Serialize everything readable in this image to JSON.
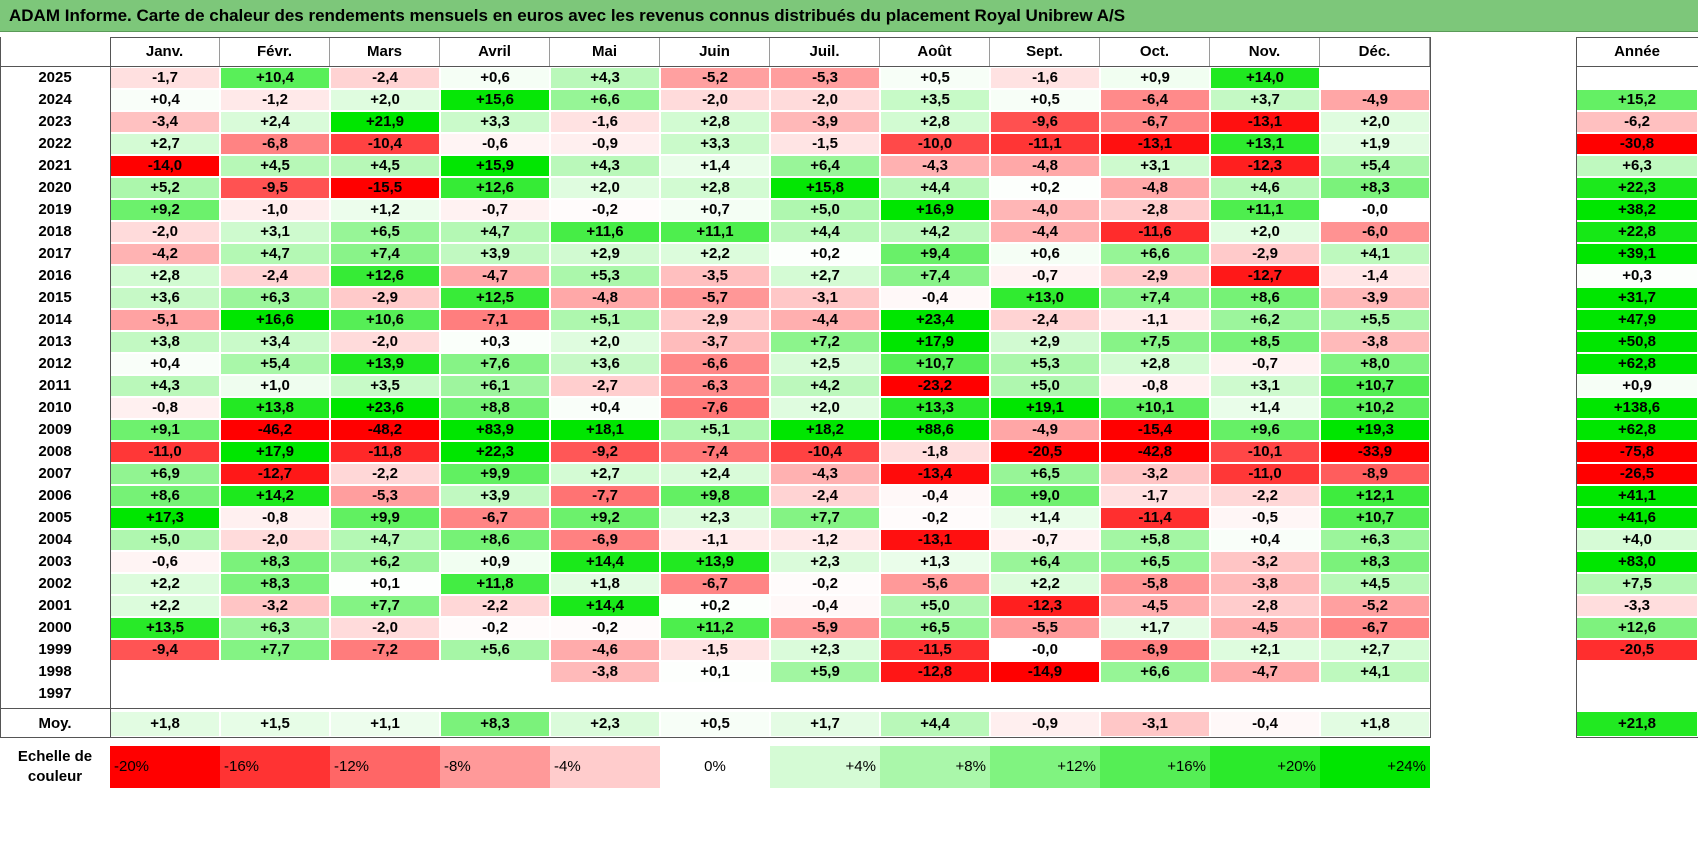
{
  "title": "ADAM Informe. Carte de chaleur des rendements mensuels en euros avec les revenus connus distribués du placement Royal Unibrew A/S",
  "chart_data": {
    "type": "heatmap",
    "title": "ADAM Informe. Carte de chaleur des rendements mensuels en euros avec les revenus connus distribués du placement Royal Unibrew A/S",
    "columns": [
      "Janv.",
      "Févr.",
      "Mars",
      "Avril",
      "Mai",
      "Juin",
      "Juil.",
      "Août",
      "Sept.",
      "Oct.",
      "Nov.",
      "Déc."
    ],
    "year_header": "Année",
    "rows": [
      {
        "year": "2025",
        "months": [
          "-1,7",
          "+10,4",
          "-2,4",
          "+0,6",
          "+4,3",
          "-5,2",
          "-5,3",
          "+0,5",
          "-1,6",
          "+0,9",
          "+14,0",
          ""
        ],
        "annual": ""
      },
      {
        "year": "2024",
        "months": [
          "+0,4",
          "-1,2",
          "+2,0",
          "+15,6",
          "+6,6",
          "-2,0",
          "-2,0",
          "+3,5",
          "+0,5",
          "-6,4",
          "+3,7",
          "-4,9"
        ],
        "annual": "+15,2"
      },
      {
        "year": "2023",
        "months": [
          "-3,4",
          "+2,4",
          "+21,9",
          "+3,3",
          "-1,6",
          "+2,8",
          "-3,9",
          "+2,8",
          "-9,6",
          "-6,7",
          "-13,1",
          "+2,0"
        ],
        "annual": "-6,2"
      },
      {
        "year": "2022",
        "months": [
          "+2,7",
          "-6,8",
          "-10,4",
          "-0,6",
          "-0,9",
          "+3,3",
          "-1,5",
          "-10,0",
          "-11,1",
          "-13,1",
          "+13,1",
          "+1,9"
        ],
        "annual": "-30,8"
      },
      {
        "year": "2021",
        "months": [
          "-14,0",
          "+4,5",
          "+4,5",
          "+15,9",
          "+4,3",
          "+1,4",
          "+6,4",
          "-4,3",
          "-4,8",
          "+3,1",
          "-12,3",
          "+5,4"
        ],
        "annual": "+6,3"
      },
      {
        "year": "2020",
        "months": [
          "+5,2",
          "-9,5",
          "-15,5",
          "+12,6",
          "+2,0",
          "+2,8",
          "+15,8",
          "+4,4",
          "+0,2",
          "-4,8",
          "+4,6",
          "+8,3"
        ],
        "annual": "+22,3"
      },
      {
        "year": "2019",
        "months": [
          "+9,2",
          "-1,0",
          "+1,2",
          "-0,7",
          "-0,2",
          "+0,7",
          "+5,0",
          "+16,9",
          "-4,0",
          "-2,8",
          "+11,1",
          "-0,0"
        ],
        "annual": "+38,2"
      },
      {
        "year": "2018",
        "months": [
          "-2,0",
          "+3,1",
          "+6,5",
          "+4,7",
          "+11,6",
          "+11,1",
          "+4,4",
          "+4,2",
          "-4,4",
          "-11,6",
          "+2,0",
          "-6,0"
        ],
        "annual": "+22,8"
      },
      {
        "year": "2017",
        "months": [
          "-4,2",
          "+4,7",
          "+7,4",
          "+3,9",
          "+2,9",
          "+2,2",
          "+0,2",
          "+9,4",
          "+0,6",
          "+6,6",
          "-2,9",
          "+4,1"
        ],
        "annual": "+39,1"
      },
      {
        "year": "2016",
        "months": [
          "+2,8",
          "-2,4",
          "+12,6",
          "-4,7",
          "+5,3",
          "-3,5",
          "+2,7",
          "+7,4",
          "-0,7",
          "-2,9",
          "-12,7",
          "-1,4"
        ],
        "annual": "+0,3"
      },
      {
        "year": "2015",
        "months": [
          "+3,6",
          "+6,3",
          "-2,9",
          "+12,5",
          "-4,8",
          "-5,7",
          "-3,1",
          "-0,4",
          "+13,0",
          "+7,4",
          "+8,6",
          "-3,9"
        ],
        "annual": "+31,7"
      },
      {
        "year": "2014",
        "months": [
          "-5,1",
          "+16,6",
          "+10,6",
          "-7,1",
          "+5,1",
          "-2,9",
          "-4,4",
          "+23,4",
          "-2,4",
          "-1,1",
          "+6,2",
          "+5,5"
        ],
        "annual": "+47,9"
      },
      {
        "year": "2013",
        "months": [
          "+3,8",
          "+3,4",
          "-2,0",
          "+0,3",
          "+2,0",
          "-3,7",
          "+7,2",
          "+17,9",
          "+2,9",
          "+7,5",
          "+8,5",
          "-3,8"
        ],
        "annual": "+50,8"
      },
      {
        "year": "2012",
        "months": [
          "+0,4",
          "+5,4",
          "+13,9",
          "+7,6",
          "+3,6",
          "-6,6",
          "+2,5",
          "+10,7",
          "+5,3",
          "+2,8",
          "-0,7",
          "+8,0"
        ],
        "annual": "+62,8"
      },
      {
        "year": "2011",
        "months": [
          "+4,3",
          "+1,0",
          "+3,5",
          "+6,1",
          "-2,7",
          "-6,3",
          "+4,2",
          "-23,2",
          "+5,0",
          "-0,8",
          "+3,1",
          "+10,7"
        ],
        "annual": "+0,9"
      },
      {
        "year": "2010",
        "months": [
          "-0,8",
          "+13,8",
          "+23,6",
          "+8,8",
          "+0,4",
          "-7,6",
          "+2,0",
          "+13,3",
          "+19,1",
          "+10,1",
          "+1,4",
          "+10,2"
        ],
        "annual": "+138,6"
      },
      {
        "year": "2009",
        "months": [
          "+9,1",
          "-46,2",
          "-48,2",
          "+83,9",
          "+18,1",
          "+5,1",
          "+18,2",
          "+88,6",
          "-4,9",
          "-15,4",
          "+9,6",
          "+19,3"
        ],
        "annual": "+62,8"
      },
      {
        "year": "2008",
        "months": [
          "-11,0",
          "+17,9",
          "-11,8",
          "+22,3",
          "-9,2",
          "-7,4",
          "-10,4",
          "-1,8",
          "-20,5",
          "-42,8",
          "-10,1",
          "-33,9"
        ],
        "annual": "-75,8"
      },
      {
        "year": "2007",
        "months": [
          "+6,9",
          "-12,7",
          "-2,2",
          "+9,9",
          "+2,7",
          "+2,4",
          "-4,3",
          "-13,4",
          "+6,5",
          "-3,2",
          "-11,0",
          "-8,9"
        ],
        "annual": "-26,5"
      },
      {
        "year": "2006",
        "months": [
          "+8,6",
          "+14,2",
          "-5,3",
          "+3,9",
          "-7,7",
          "+9,8",
          "-2,4",
          "-0,4",
          "+9,0",
          "-1,7",
          "-2,2",
          "+12,1"
        ],
        "annual": "+41,1"
      },
      {
        "year": "2005",
        "months": [
          "+17,3",
          "-0,8",
          "+9,9",
          "-6,7",
          "+9,2",
          "+2,3",
          "+7,7",
          "-0,2",
          "+1,4",
          "-11,4",
          "-0,5",
          "+10,7"
        ],
        "annual": "+41,6"
      },
      {
        "year": "2004",
        "months": [
          "+5,0",
          "-2,0",
          "+4,7",
          "+8,6",
          "-6,9",
          "-1,1",
          "-1,2",
          "-13,1",
          "-0,7",
          "+5,8",
          "+0,4",
          "+6,3"
        ],
        "annual": "+4,0"
      },
      {
        "year": "2003",
        "months": [
          "-0,6",
          "+8,3",
          "+6,2",
          "+0,9",
          "+14,4",
          "+13,9",
          "+2,3",
          "+1,3",
          "+6,4",
          "+6,5",
          "-3,2",
          "+8,3"
        ],
        "annual": "+83,0"
      },
      {
        "year": "2002",
        "months": [
          "+2,2",
          "+8,3",
          "+0,1",
          "+11,8",
          "+1,8",
          "-6,7",
          "-0,2",
          "-5,6",
          "+2,2",
          "-5,8",
          "-3,8",
          "+4,5"
        ],
        "annual": "+7,5"
      },
      {
        "year": "2001",
        "months": [
          "+2,2",
          "-3,2",
          "+7,7",
          "-2,2",
          "+14,4",
          "+0,2",
          "-0,4",
          "+5,0",
          "-12,3",
          "-4,5",
          "-2,8",
          "-5,2"
        ],
        "annual": "-3,3"
      },
      {
        "year": "2000",
        "months": [
          "+13,5",
          "+6,3",
          "-2,0",
          "-0,2",
          "-0,2",
          "+11,2",
          "-5,9",
          "+6,5",
          "-5,5",
          "+1,7",
          "-4,5",
          "-6,7"
        ],
        "annual": "+12,6"
      },
      {
        "year": "1999",
        "months": [
          "-9,4",
          "+7,7",
          "-7,2",
          "+5,6",
          "-4,6",
          "-1,5",
          "+2,3",
          "-11,5",
          "-0,0",
          "-6,9",
          "+2,1",
          "+2,7"
        ],
        "annual": "-20,5"
      },
      {
        "year": "1998",
        "months": [
          "",
          "",
          "",
          "",
          "-3,8",
          "+0,1",
          "+5,9",
          "-12,8",
          "-14,9",
          "+6,6",
          "-4,7",
          "+4,1"
        ],
        "annual": ""
      },
      {
        "year": "1997",
        "months": [
          "",
          "",
          "",
          "",
          "",
          "",
          "",
          "",
          "",
          "",
          "",
          ""
        ],
        "annual": ""
      }
    ],
    "average": {
      "label": "Moy.",
      "months": [
        "+1,8",
        "+1,5",
        "+1,1",
        "+8,3",
        "+2,3",
        "+0,5",
        "+1,7",
        "+4,4",
        "-0,9",
        "-3,1",
        "-0,4",
        "+1,8"
      ],
      "annual": "+21,8"
    },
    "scale": {
      "label": "Echelle de couleur",
      "steps": [
        "-20%",
        "-16%",
        "-12%",
        "-8%",
        "-4%",
        "0%",
        "+4%",
        "+8%",
        "+12%",
        "+16%",
        "+20%",
        "+24%"
      ]
    },
    "colors": {
      "negative": "#ff0000",
      "neutral": "#ffffff",
      "positive": "#00e600",
      "title_bg": "#7dc77a"
    }
  }
}
